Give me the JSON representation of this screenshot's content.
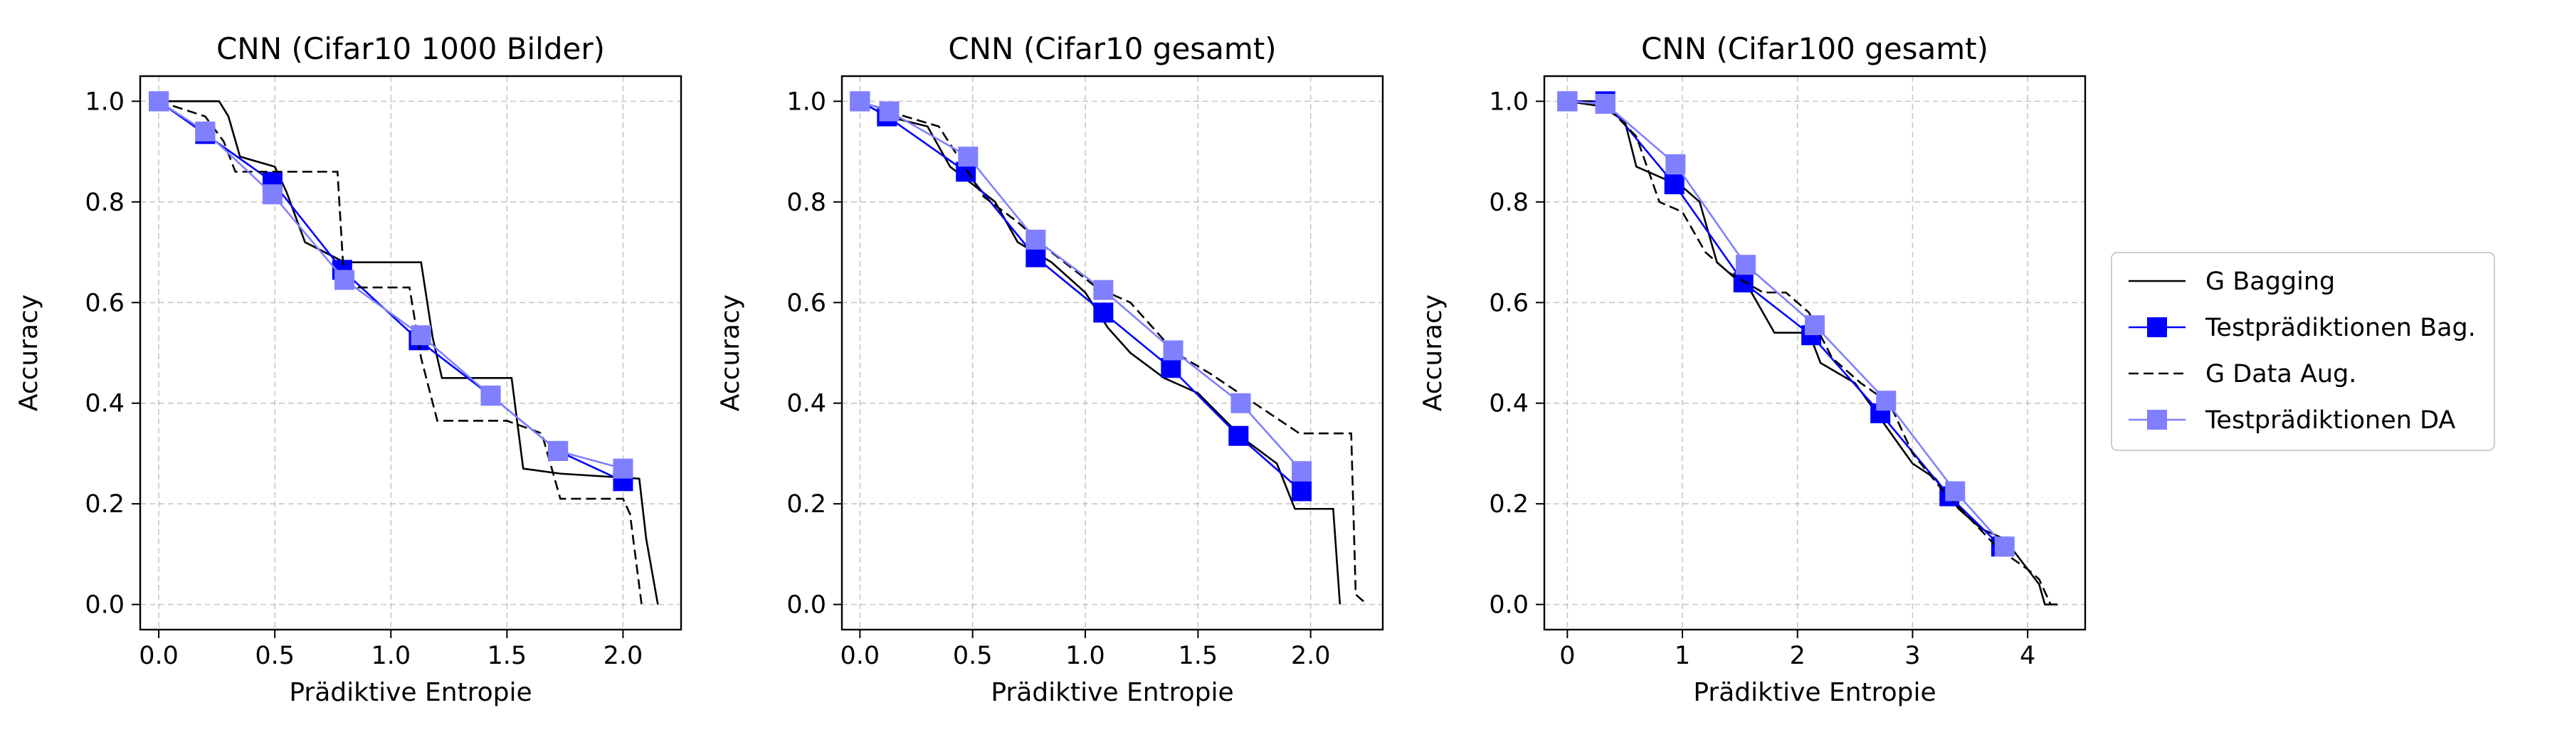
{
  "legend": {
    "placement": "right",
    "entries": [
      {
        "label": "G Bagging",
        "color": "#000000",
        "style": "solid",
        "marker": "none"
      },
      {
        "label": "Testprädiktionen Bag.",
        "color": "#0000ff",
        "style": "solid",
        "marker": "square"
      },
      {
        "label": "G Data Aug.",
        "color": "#000000",
        "style": "dashed",
        "marker": "none"
      },
      {
        "label": "Testprädiktionen DA",
        "color": "#8080ff",
        "style": "solid",
        "marker": "square"
      }
    ]
  },
  "chart_data": [
    {
      "type": "line",
      "title": "CNN (Cifar10 1000 Bilder)",
      "xlabel": "Prädiktive Entropie",
      "ylabel": "Accuracy",
      "xlim": [
        -0.08,
        2.25
      ],
      "ylim": [
        -0.05,
        1.05
      ],
      "xticks": [
        0.0,
        0.5,
        1.0,
        1.5,
        2.0
      ],
      "xtick_labels": [
        "0.0",
        "0.5",
        "1.0",
        "1.5",
        "2.0"
      ],
      "yticks": [
        0.0,
        0.2,
        0.4,
        0.6,
        0.8,
        1.0
      ],
      "ytick_labels": [
        "0.0",
        "0.2",
        "0.4",
        "0.6",
        "0.8",
        "1.0"
      ],
      "grid": true,
      "series": [
        {
          "name": "G Bagging",
          "color": "#000000",
          "dash": "solid",
          "marker": "none",
          "step": true,
          "x": [
            0.0,
            0.26,
            0.3,
            0.35,
            0.5,
            0.55,
            0.63,
            0.8,
            1.13,
            1.18,
            1.22,
            1.52,
            1.57,
            1.73,
            2.07,
            2.1,
            2.15
          ],
          "y": [
            1.0,
            1.0,
            0.97,
            0.89,
            0.87,
            0.82,
            0.72,
            0.68,
            0.68,
            0.53,
            0.45,
            0.45,
            0.27,
            0.26,
            0.25,
            0.13,
            0.0
          ]
        },
        {
          "name": "Testprädiktionen Bag.",
          "color": "#0000ff",
          "dash": "solid",
          "marker": "square",
          "x": [
            0.0,
            0.2,
            0.49,
            0.79,
            1.12,
            1.43,
            1.72,
            2.0
          ],
          "y": [
            1.0,
            0.935,
            0.84,
            0.665,
            0.525,
            0.415,
            0.305,
            0.245
          ]
        },
        {
          "name": "G Data Aug.",
          "color": "#000000",
          "dash": "dashed",
          "marker": "none",
          "step": true,
          "x": [
            0.0,
            0.2,
            0.28,
            0.33,
            0.5,
            0.57,
            0.77,
            0.8,
            1.08,
            1.13,
            1.2,
            1.5,
            1.65,
            1.73,
            2.0,
            2.03,
            2.08
          ],
          "y": [
            1.0,
            0.97,
            0.92,
            0.86,
            0.86,
            0.86,
            0.86,
            0.63,
            0.63,
            0.49,
            0.365,
            0.365,
            0.34,
            0.21,
            0.21,
            0.18,
            0.0
          ]
        },
        {
          "name": "Testprädiktionen DA",
          "color": "#8080ff",
          "dash": "solid",
          "marker": "square",
          "x": [
            0.0,
            0.2,
            0.49,
            0.8,
            1.13,
            1.43,
            1.72,
            2.0
          ],
          "y": [
            1.0,
            0.94,
            0.815,
            0.645,
            0.535,
            0.415,
            0.305,
            0.27
          ]
        }
      ]
    },
    {
      "type": "line",
      "title": "CNN (Cifar10 gesamt)",
      "xlabel": "Prädiktive Entropie",
      "ylabel": "Accuracy",
      "xlim": [
        -0.08,
        2.32
      ],
      "ylim": [
        -0.05,
        1.05
      ],
      "xticks": [
        0.0,
        0.5,
        1.0,
        1.5,
        2.0
      ],
      "xtick_labels": [
        "0.0",
        "0.5",
        "1.0",
        "1.5",
        "2.0"
      ],
      "yticks": [
        0.0,
        0.2,
        0.4,
        0.6,
        0.8,
        1.0
      ],
      "ytick_labels": [
        "0.0",
        "0.2",
        "0.4",
        "0.6",
        "0.8",
        "1.0"
      ],
      "grid": true,
      "series": [
        {
          "name": "G Bagging",
          "color": "#000000",
          "dash": "solid",
          "marker": "none",
          "step": true,
          "x": [
            0.0,
            0.12,
            0.3,
            0.4,
            0.6,
            0.7,
            0.85,
            1.0,
            1.1,
            1.2,
            1.35,
            1.5,
            1.7,
            1.85,
            1.93,
            2.1,
            2.13
          ],
          "y": [
            1.0,
            0.97,
            0.95,
            0.87,
            0.8,
            0.72,
            0.68,
            0.62,
            0.55,
            0.5,
            0.45,
            0.42,
            0.33,
            0.28,
            0.19,
            0.19,
            0.0
          ]
        },
        {
          "name": "Testprädiktionen Bag.",
          "color": "#0000ff",
          "dash": "solid",
          "marker": "square",
          "x": [
            0.0,
            0.12,
            0.47,
            0.78,
            1.08,
            1.38,
            1.68,
            1.96
          ],
          "y": [
            1.0,
            0.97,
            0.86,
            0.69,
            0.58,
            0.47,
            0.335,
            0.225
          ]
        },
        {
          "name": "G Data Aug.",
          "color": "#000000",
          "dash": "dashed",
          "marker": "none",
          "step": true,
          "x": [
            0.0,
            0.2,
            0.35,
            0.55,
            0.7,
            0.85,
            1.05,
            1.2,
            1.4,
            1.55,
            1.75,
            1.95,
            2.18,
            2.2,
            2.25
          ],
          "y": [
            1.0,
            0.97,
            0.95,
            0.81,
            0.76,
            0.7,
            0.63,
            0.6,
            0.5,
            0.46,
            0.4,
            0.34,
            0.34,
            0.02,
            0.0
          ]
        },
        {
          "name": "Testprädiktionen DA",
          "color": "#8080ff",
          "dash": "solid",
          "marker": "square",
          "x": [
            0.0,
            0.13,
            0.48,
            0.78,
            1.08,
            1.39,
            1.69,
            1.96
          ],
          "y": [
            1.0,
            0.98,
            0.89,
            0.725,
            0.625,
            0.505,
            0.4,
            0.265
          ]
        }
      ]
    },
    {
      "type": "line",
      "title": "CNN (Cifar100 gesamt)",
      "xlabel": "Prädiktive Entropie",
      "ylabel": "Accuracy",
      "xlim": [
        -0.2,
        4.5
      ],
      "ylim": [
        -0.05,
        1.05
      ],
      "xticks": [
        0,
        1,
        2,
        3,
        4
      ],
      "xtick_labels": [
        "0",
        "1",
        "2",
        "3",
        "4"
      ],
      "yticks": [
        0.0,
        0.2,
        0.4,
        0.6,
        0.8,
        1.0
      ],
      "ytick_labels": [
        "0.0",
        "0.2",
        "0.4",
        "0.6",
        "0.8",
        "1.0"
      ],
      "grid": true,
      "series": [
        {
          "name": "G Bagging",
          "color": "#000000",
          "dash": "solid",
          "marker": "none",
          "step": true,
          "x": [
            0.0,
            0.3,
            0.5,
            0.6,
            0.8,
            1.0,
            1.15,
            1.3,
            1.6,
            1.8,
            2.1,
            2.2,
            2.5,
            2.75,
            3.0,
            3.2,
            3.4,
            3.6,
            3.8,
            4.0,
            4.1,
            4.15,
            4.25
          ],
          "y": [
            1.0,
            0.99,
            0.96,
            0.87,
            0.85,
            0.83,
            0.8,
            0.68,
            0.62,
            0.54,
            0.54,
            0.48,
            0.44,
            0.36,
            0.28,
            0.25,
            0.19,
            0.15,
            0.13,
            0.07,
            0.04,
            0.0,
            0.0
          ]
        },
        {
          "name": "Testprädiktionen Bag.",
          "color": "#0000ff",
          "dash": "solid",
          "marker": "square",
          "x": [
            0.0,
            0.33,
            0.93,
            1.53,
            2.12,
            2.72,
            3.32,
            3.77
          ],
          "y": [
            1.0,
            1.0,
            0.835,
            0.64,
            0.535,
            0.38,
            0.215,
            0.115
          ]
        },
        {
          "name": "G Data Aug.",
          "color": "#000000",
          "dash": "dashed",
          "marker": "none",
          "step": true,
          "x": [
            0.0,
            0.3,
            0.6,
            0.8,
            1.0,
            1.2,
            1.4,
            1.7,
            1.9,
            2.1,
            2.3,
            2.55,
            2.8,
            3.0,
            3.25,
            3.5,
            3.75,
            4.0,
            4.1,
            4.2,
            4.3
          ],
          "y": [
            1.0,
            1.0,
            0.93,
            0.8,
            0.78,
            0.7,
            0.66,
            0.62,
            0.62,
            0.58,
            0.49,
            0.44,
            0.4,
            0.3,
            0.23,
            0.17,
            0.11,
            0.07,
            0.05,
            0.0,
            0.0
          ]
        },
        {
          "name": "Testprädiktionen DA",
          "color": "#8080ff",
          "dash": "solid",
          "marker": "square",
          "x": [
            0.0,
            0.33,
            0.94,
            1.55,
            2.15,
            2.77,
            3.37,
            3.8
          ],
          "y": [
            1.0,
            0.995,
            0.875,
            0.675,
            0.555,
            0.405,
            0.225,
            0.115
          ]
        }
      ]
    }
  ]
}
